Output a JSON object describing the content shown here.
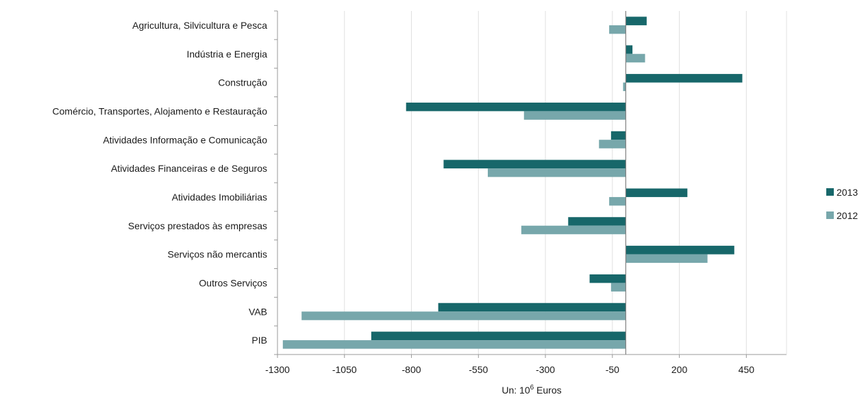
{
  "colors": {
    "series_2013": "#17676a",
    "series_2012": "#77a7ab",
    "gridline": "#e0e0e0",
    "axis": "#999999",
    "zero_line": "#808080",
    "text": "#1a1a1a"
  },
  "x_unit_label": {
    "prefix": "Un: 10",
    "superscript": "6",
    "suffix": " Euros"
  },
  "chart_data": {
    "type": "bar",
    "orientation": "horizontal",
    "title": "",
    "xlabel": "Un: 10^6 Euros",
    "ylabel": "",
    "xlim": [
      -1300,
      600
    ],
    "xticks": [
      -1300,
      -1050,
      -800,
      -550,
      -300,
      -50,
      200,
      450
    ],
    "xtick_labels": [
      "-1300",
      "-1050",
      "-800",
      "-550",
      "-300",
      "-50",
      "200",
      "450"
    ],
    "grid": true,
    "legend_position": "right",
    "categories": [
      "Agricultura, Silvicultura e Pesca",
      "Indústria e Energia",
      "Construção",
      "Comércio, Transportes, Alojamento e Restauração",
      "Atividades Informação e Comunicação",
      "Atividades Financeiras e de Seguros",
      "Atividades Imobiliárias",
      "Serviços prestados às empresas",
      "Serviços não mercantis",
      "Outros Serviços",
      "VAB",
      "PIB"
    ],
    "series": [
      {
        "name": "2013",
        "values": [
          78,
          25,
          435,
          -820,
          -55,
          -680,
          230,
          -215,
          405,
          -135,
          -700,
          -950
        ]
      },
      {
        "name": "2012",
        "values": [
          -62,
          72,
          -10,
          -380,
          -100,
          -515,
          -62,
          -390,
          305,
          -55,
          -1210,
          -1280
        ]
      }
    ]
  }
}
